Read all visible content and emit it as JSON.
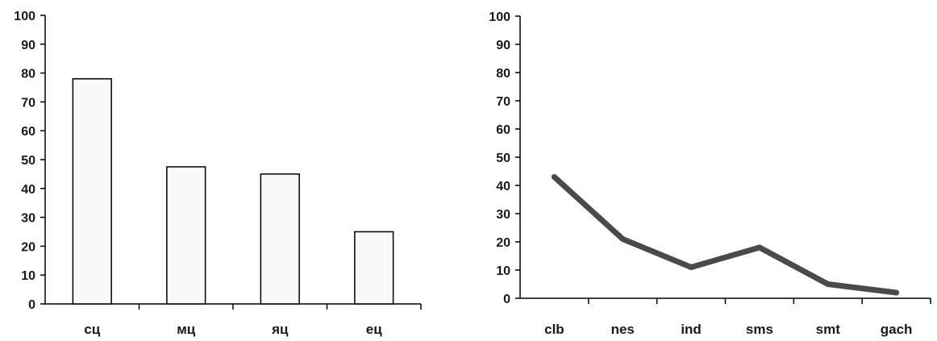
{
  "chart_data": [
    {
      "type": "bar",
      "title": "",
      "xlabel": "",
      "ylabel": "",
      "categories": [
        "сц",
        "мц",
        "яц",
        "ец"
      ],
      "values": [
        78,
        47.5,
        45,
        25
      ],
      "ylim": [
        0,
        100
      ],
      "yticks": [
        0,
        10,
        20,
        30,
        40,
        50,
        60,
        70,
        80,
        90,
        100
      ],
      "ytick_labels": [
        "0",
        "10",
        "20",
        "30",
        "40",
        "50",
        "60",
        "70",
        "80",
        "90",
        "100"
      ],
      "grid": false,
      "legend": "none",
      "colors": {
        "bar_fill": "#f7faf7",
        "bar_stroke": "#000000",
        "axis": "#000000"
      }
    },
    {
      "type": "line",
      "title": "",
      "xlabel": "",
      "ylabel": "",
      "categories": [
        "clb",
        "nes",
        "ind",
        "sms",
        "smt",
        "gach"
      ],
      "values": [
        43,
        21,
        11,
        18,
        5,
        2
      ],
      "ylim": [
        0,
        100
      ],
      "yticks": [
        0,
        10,
        20,
        30,
        40,
        50,
        60,
        70,
        80,
        90,
        100
      ],
      "ytick_labels": [
        "0",
        "10",
        "20",
        "30",
        "40",
        "50",
        "60",
        "70",
        "80",
        "90",
        "100"
      ],
      "grid": false,
      "legend": "none",
      "colors": {
        "line": "#4a4a4a",
        "axis": "#000000"
      }
    }
  ]
}
